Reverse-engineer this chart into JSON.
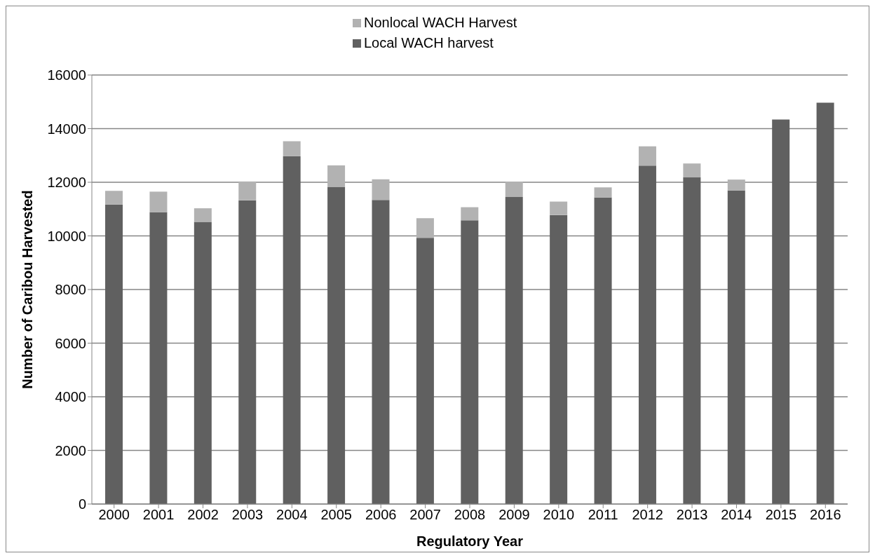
{
  "chart_data": {
    "type": "bar",
    "stacked": true,
    "xlabel": "Regulatory Year",
    "ylabel": "Number of Caribou Harvested",
    "categories": [
      "2000",
      "2001",
      "2002",
      "2003",
      "2004",
      "2005",
      "2006",
      "2007",
      "2008",
      "2009",
      "2010",
      "2011",
      "2012",
      "2013",
      "2014",
      "2015",
      "2016"
    ],
    "series": [
      {
        "name": "Local WACH harvest",
        "color": "#606060",
        "values": [
          11170,
          10880,
          10520,
          11330,
          12970,
          11830,
          11340,
          9930,
          10580,
          11450,
          10780,
          11430,
          12620,
          12180,
          11690,
          14340,
          14970
        ]
      },
      {
        "name": "Nonlocal WACH Harvest",
        "color": "#b2b2b2",
        "values": [
          510,
          770,
          510,
          700,
          560,
          800,
          770,
          730,
          490,
          570,
          500,
          380,
          720,
          520,
          410,
          null,
          null
        ]
      }
    ],
    "ylim": [
      0,
      16000
    ],
    "yticks": [
      0,
      2000,
      4000,
      6000,
      8000,
      10000,
      12000,
      14000,
      16000
    ],
    "grid": "y",
    "legend": "top"
  }
}
